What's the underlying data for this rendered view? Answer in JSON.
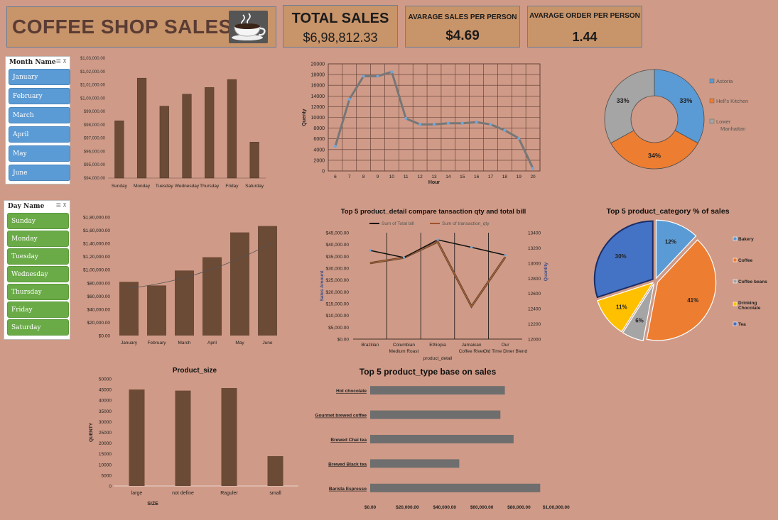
{
  "header": {
    "title": "COFFEE SHOP SALES",
    "total_sales_label": "TOTAL SALES",
    "total_sales_value": "$6,98,812.33",
    "avg_sales_label": "AVARAGE SALES PER PERSON",
    "avg_sales_value": "$4.69",
    "avg_order_label": "AVARAGE ORDER PER PERSON",
    "avg_order_value": "1.44"
  },
  "slicers": {
    "month": {
      "title": "Month Name",
      "items": [
        "January",
        "February",
        "March",
        "April",
        "May",
        "June"
      ]
    },
    "day": {
      "title": "Day Name",
      "items": [
        "Sunday",
        "Monday",
        "Tuesday",
        "Wednesday",
        "Thursday",
        "Friday",
        "Saturday"
      ]
    }
  },
  "colors": {
    "background": "#cf9a87",
    "bar": "#6b4a36",
    "card": "#c8946a",
    "grey_bar": "#6e6e6e",
    "blue": "#5b9bd5",
    "orange": "#ed7d31",
    "gray": "#a5a5a5",
    "yellow": "#ffc000",
    "navy": "#4472c4"
  },
  "chart_data": [
    {
      "id": "day_sales",
      "type": "bar",
      "title": "",
      "categories": [
        "Sunday",
        "Monday",
        "Tuesday",
        "Wednesday",
        "Thursday",
        "Friday",
        "Saturday"
      ],
      "values": [
        98300,
        101500,
        99400,
        100300,
        100800,
        101400,
        96700
      ],
      "ylim": [
        94000,
        103000
      ],
      "yticks": [
        "$94,000.00",
        "$95,000.00",
        "$96,000.00",
        "$97,000.00",
        "$98,000.00",
        "$99,000.00",
        "$1,00,000.00",
        "$1,01,000.00",
        "$1,02,000.00",
        "$1,03,000.00"
      ]
    },
    {
      "id": "hour_qty",
      "type": "line",
      "title": "",
      "xlabel": "Hour",
      "ylabel": "Quenty",
      "x": [
        6,
        7,
        8,
        9,
        10,
        11,
        12,
        13,
        14,
        15,
        16,
        17,
        18,
        19,
        20
      ],
      "values": [
        4600,
        13400,
        17700,
        17700,
        18500,
        9800,
        8700,
        8700,
        8900,
        8900,
        9100,
        8700,
        7600,
        6100,
        500
      ],
      "ylim": [
        0,
        20000
      ],
      "yticks": [
        "0",
        "2000",
        "4000",
        "6000",
        "8000",
        "10000",
        "12000",
        "14000",
        "16000",
        "18000",
        "20000"
      ]
    },
    {
      "id": "store_share",
      "type": "pie",
      "title": "",
      "labels": [
        "Astoria",
        "Hell's Kitchen",
        "Lower Manhattan"
      ],
      "values": [
        33,
        34,
        33
      ],
      "value_labels": [
        "33%",
        "34%",
        "33%"
      ],
      "legend": "right"
    },
    {
      "id": "month_sales",
      "type": "bar",
      "title": "",
      "categories": [
        "January",
        "February",
        "March",
        "April",
        "May",
        "June"
      ],
      "values": [
        81600,
        76100,
        98800,
        119000,
        156700,
        166400
      ],
      "ylim": [
        0,
        180000
      ],
      "yticks": [
        "$0.00",
        "$20,000.00",
        "$40,000.00",
        "$60,000.00",
        "$80,000.00",
        "$1,00,000.00",
        "$1,20,000.00",
        "$1,40,000.00",
        "$1,60,000.00",
        "$1,80,000.00"
      ],
      "trendline": true
    },
    {
      "id": "product_detail",
      "type": "line",
      "title": "Top 5 product_detail compare tansaction qty and total bill",
      "xlabel": "product_detail",
      "ylabel": "Sales Amount",
      "y2label": "Quantity",
      "categories": [
        "Brazilian",
        "Columbian Medium Roast",
        "Ethiopia",
        "Jamaican Coffee River",
        "Our Old Time Diner Blend"
      ],
      "series": [
        {
          "name": "Sum of Total bill",
          "values": [
            37500,
            34500,
            42000,
            38800,
            35500
          ],
          "axis": "left"
        },
        {
          "name": "Sum of transaction_qty",
          "values": [
            13000,
            13070,
            13280,
            12430,
            13080
          ],
          "axis": "right"
        }
      ],
      "ylim": [
        0,
        45000
      ],
      "y2lim": [
        12000,
        13400
      ],
      "yticks": [
        "$0.00",
        "$5,000.00",
        "$10,000.00",
        "$15,000.00",
        "$20,000.00",
        "$25,000.00",
        "$30,000.00",
        "$35,000.00",
        "$40,000.00",
        "$45,000.00"
      ],
      "y2ticks": [
        "12000",
        "12200",
        "12400",
        "12600",
        "12800",
        "13000",
        "13200",
        "13400"
      ]
    },
    {
      "id": "category_share",
      "type": "pie",
      "title": "Top 5 product_category % of sales",
      "labels": [
        "Bakery",
        "Coffee",
        "Coffee beans",
        "Drinking Chocolate",
        "Tea"
      ],
      "values": [
        12,
        41,
        6,
        11,
        30
      ],
      "value_labels": [
        "12%",
        "41%",
        "6%",
        "11%",
        "30%"
      ],
      "legend": "right"
    },
    {
      "id": "product_size",
      "type": "bar",
      "title": "Product_size",
      "xlabel": "SIZE",
      "ylabel": "QUENTY",
      "categories": [
        "large",
        "not define",
        "Raguler",
        "small"
      ],
      "values": [
        45000,
        44500,
        45700,
        13900
      ],
      "ylim": [
        0,
        50000
      ],
      "yticks": [
        "0",
        "5000",
        "10000",
        "15000",
        "20000",
        "25000",
        "30000",
        "35000",
        "40000",
        "45000",
        "50000"
      ]
    },
    {
      "id": "product_type",
      "type": "bar",
      "orientation": "horizontal",
      "title": "Top 5 product_type base on sales",
      "categories": [
        "Hot chocolate",
        "Gourmet brewed coffee",
        "Brewed Chai tea",
        "Brewed Black tea",
        "Barista Espresso"
      ],
      "values": [
        72400,
        70000,
        77100,
        47900,
        91400
      ],
      "xlim": [
        0,
        110000
      ],
      "xticks": [
        "$0.00",
        "$20,000.00",
        "$40,000.00",
        "$60,000.00",
        "$80,000.00",
        "$1,00,000.00"
      ]
    }
  ]
}
